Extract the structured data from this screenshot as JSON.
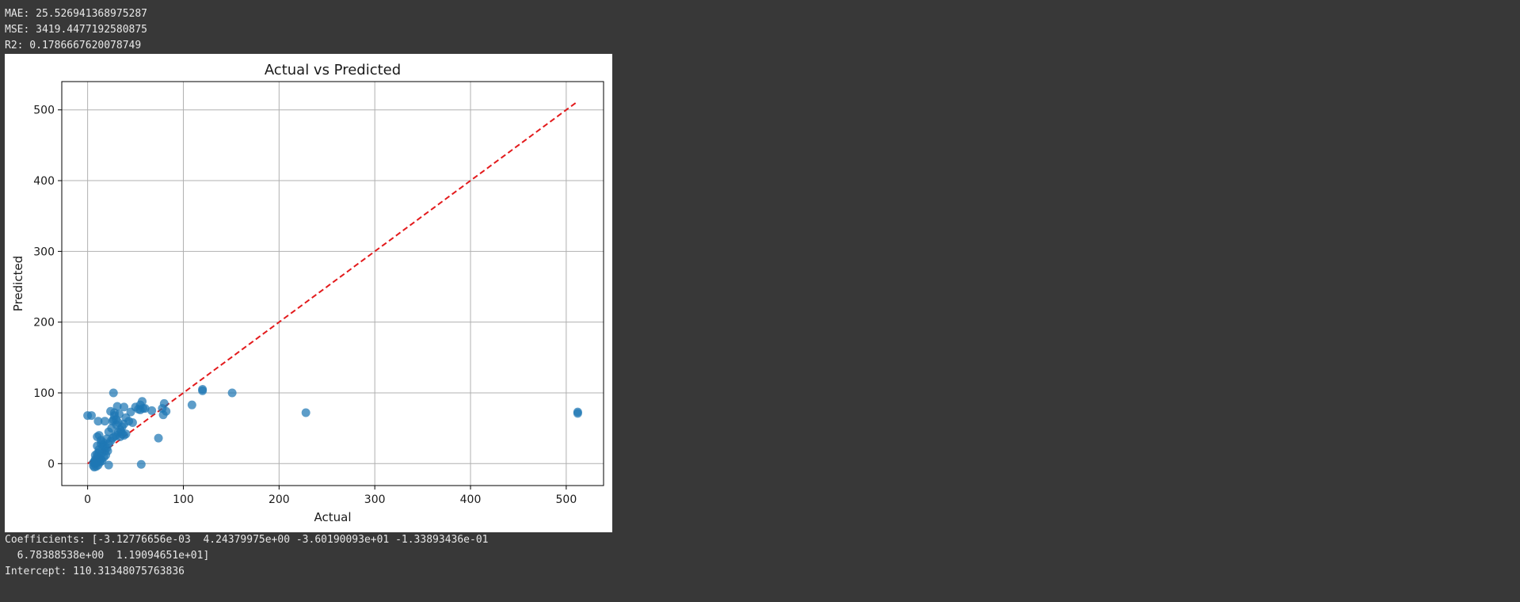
{
  "output": {
    "mae": "MAE: 25.526941368975287",
    "mse": "MSE: 3419.4477192580875",
    "r2": "R2: 0.1786667620078749",
    "coefficients_line1": "Coefficients: [-3.12776656e-03  4.24379975e+00 -3.60190093e+01 -1.33893436e-01",
    "coefficients_line2": "  6.78388538e+00  1.19094651e+01]",
    "intercept": "Intercept: 110.31348075763836"
  },
  "chart_data": {
    "type": "scatter",
    "title": "Actual vs Predicted",
    "xlabel": "Actual",
    "ylabel": "Predicted",
    "xlim": [
      -27,
      539
    ],
    "ylim": [
      -31,
      540
    ],
    "xticks": [
      0,
      100,
      200,
      300,
      400,
      500
    ],
    "yticks": [
      0,
      100,
      200,
      300,
      400,
      500
    ],
    "grid": true,
    "point_color": "#1f77b4",
    "reference_line": {
      "x": [
        0,
        512
      ],
      "y": [
        0,
        512
      ],
      "color": "#e31a1c",
      "style": "dashed"
    },
    "points": [
      [
        0,
        68
      ],
      [
        4,
        68
      ],
      [
        27,
        100
      ],
      [
        31,
        81
      ],
      [
        24,
        74
      ],
      [
        28,
        72
      ],
      [
        33,
        70
      ],
      [
        38,
        80
      ],
      [
        45,
        73
      ],
      [
        53,
        77
      ],
      [
        55,
        83
      ],
      [
        57,
        88
      ],
      [
        58,
        78
      ],
      [
        67,
        75
      ],
      [
        80,
        85
      ],
      [
        78,
        78
      ],
      [
        82,
        74
      ],
      [
        79,
        69
      ],
      [
        109,
        83
      ],
      [
        120,
        105
      ],
      [
        120,
        103
      ],
      [
        151,
        100
      ],
      [
        228,
        72
      ],
      [
        512,
        73
      ],
      [
        512,
        71
      ],
      [
        74,
        36
      ],
      [
        56,
        -1
      ],
      [
        22,
        -2
      ],
      [
        11,
        60
      ],
      [
        18,
        60
      ],
      [
        27,
        62
      ],
      [
        30,
        55
      ],
      [
        34,
        48
      ],
      [
        36,
        42
      ],
      [
        38,
        56
      ],
      [
        40,
        65
      ],
      [
        43,
        60
      ],
      [
        47,
        58
      ],
      [
        25,
        50
      ],
      [
        22,
        45
      ],
      [
        20,
        35
      ],
      [
        12,
        40
      ],
      [
        10,
        38
      ],
      [
        14,
        33
      ],
      [
        16,
        30
      ],
      [
        10,
        25
      ],
      [
        12,
        20
      ],
      [
        15,
        15
      ],
      [
        18,
        18
      ],
      [
        20,
        22
      ],
      [
        22,
        28
      ],
      [
        24,
        32
      ],
      [
        26,
        36
      ],
      [
        28,
        38
      ],
      [
        30,
        40
      ],
      [
        32,
        44
      ],
      [
        34,
        38
      ],
      [
        36,
        52
      ],
      [
        26,
        60
      ],
      [
        28,
        68
      ],
      [
        30,
        62
      ],
      [
        32,
        58
      ],
      [
        21,
        18
      ],
      [
        8,
        12
      ],
      [
        10,
        10
      ],
      [
        12,
        8
      ],
      [
        14,
        6
      ],
      [
        9,
        5
      ],
      [
        7,
        3
      ],
      [
        8,
        0
      ],
      [
        6,
        -3
      ],
      [
        7,
        -5
      ],
      [
        9,
        -4
      ],
      [
        11,
        -2
      ],
      [
        13,
        2
      ],
      [
        15,
        4
      ],
      [
        17,
        9
      ],
      [
        19,
        12
      ],
      [
        10,
        14
      ],
      [
        12,
        16
      ],
      [
        14,
        28
      ],
      [
        16,
        26
      ],
      [
        18,
        24
      ],
      [
        50,
        80
      ],
      [
        55,
        76
      ],
      [
        60,
        78
      ],
      [
        35,
        45
      ],
      [
        38,
        40
      ],
      [
        40,
        42
      ],
      [
        8,
        6
      ],
      [
        10,
        2
      ],
      [
        6,
        1
      ]
    ]
  }
}
